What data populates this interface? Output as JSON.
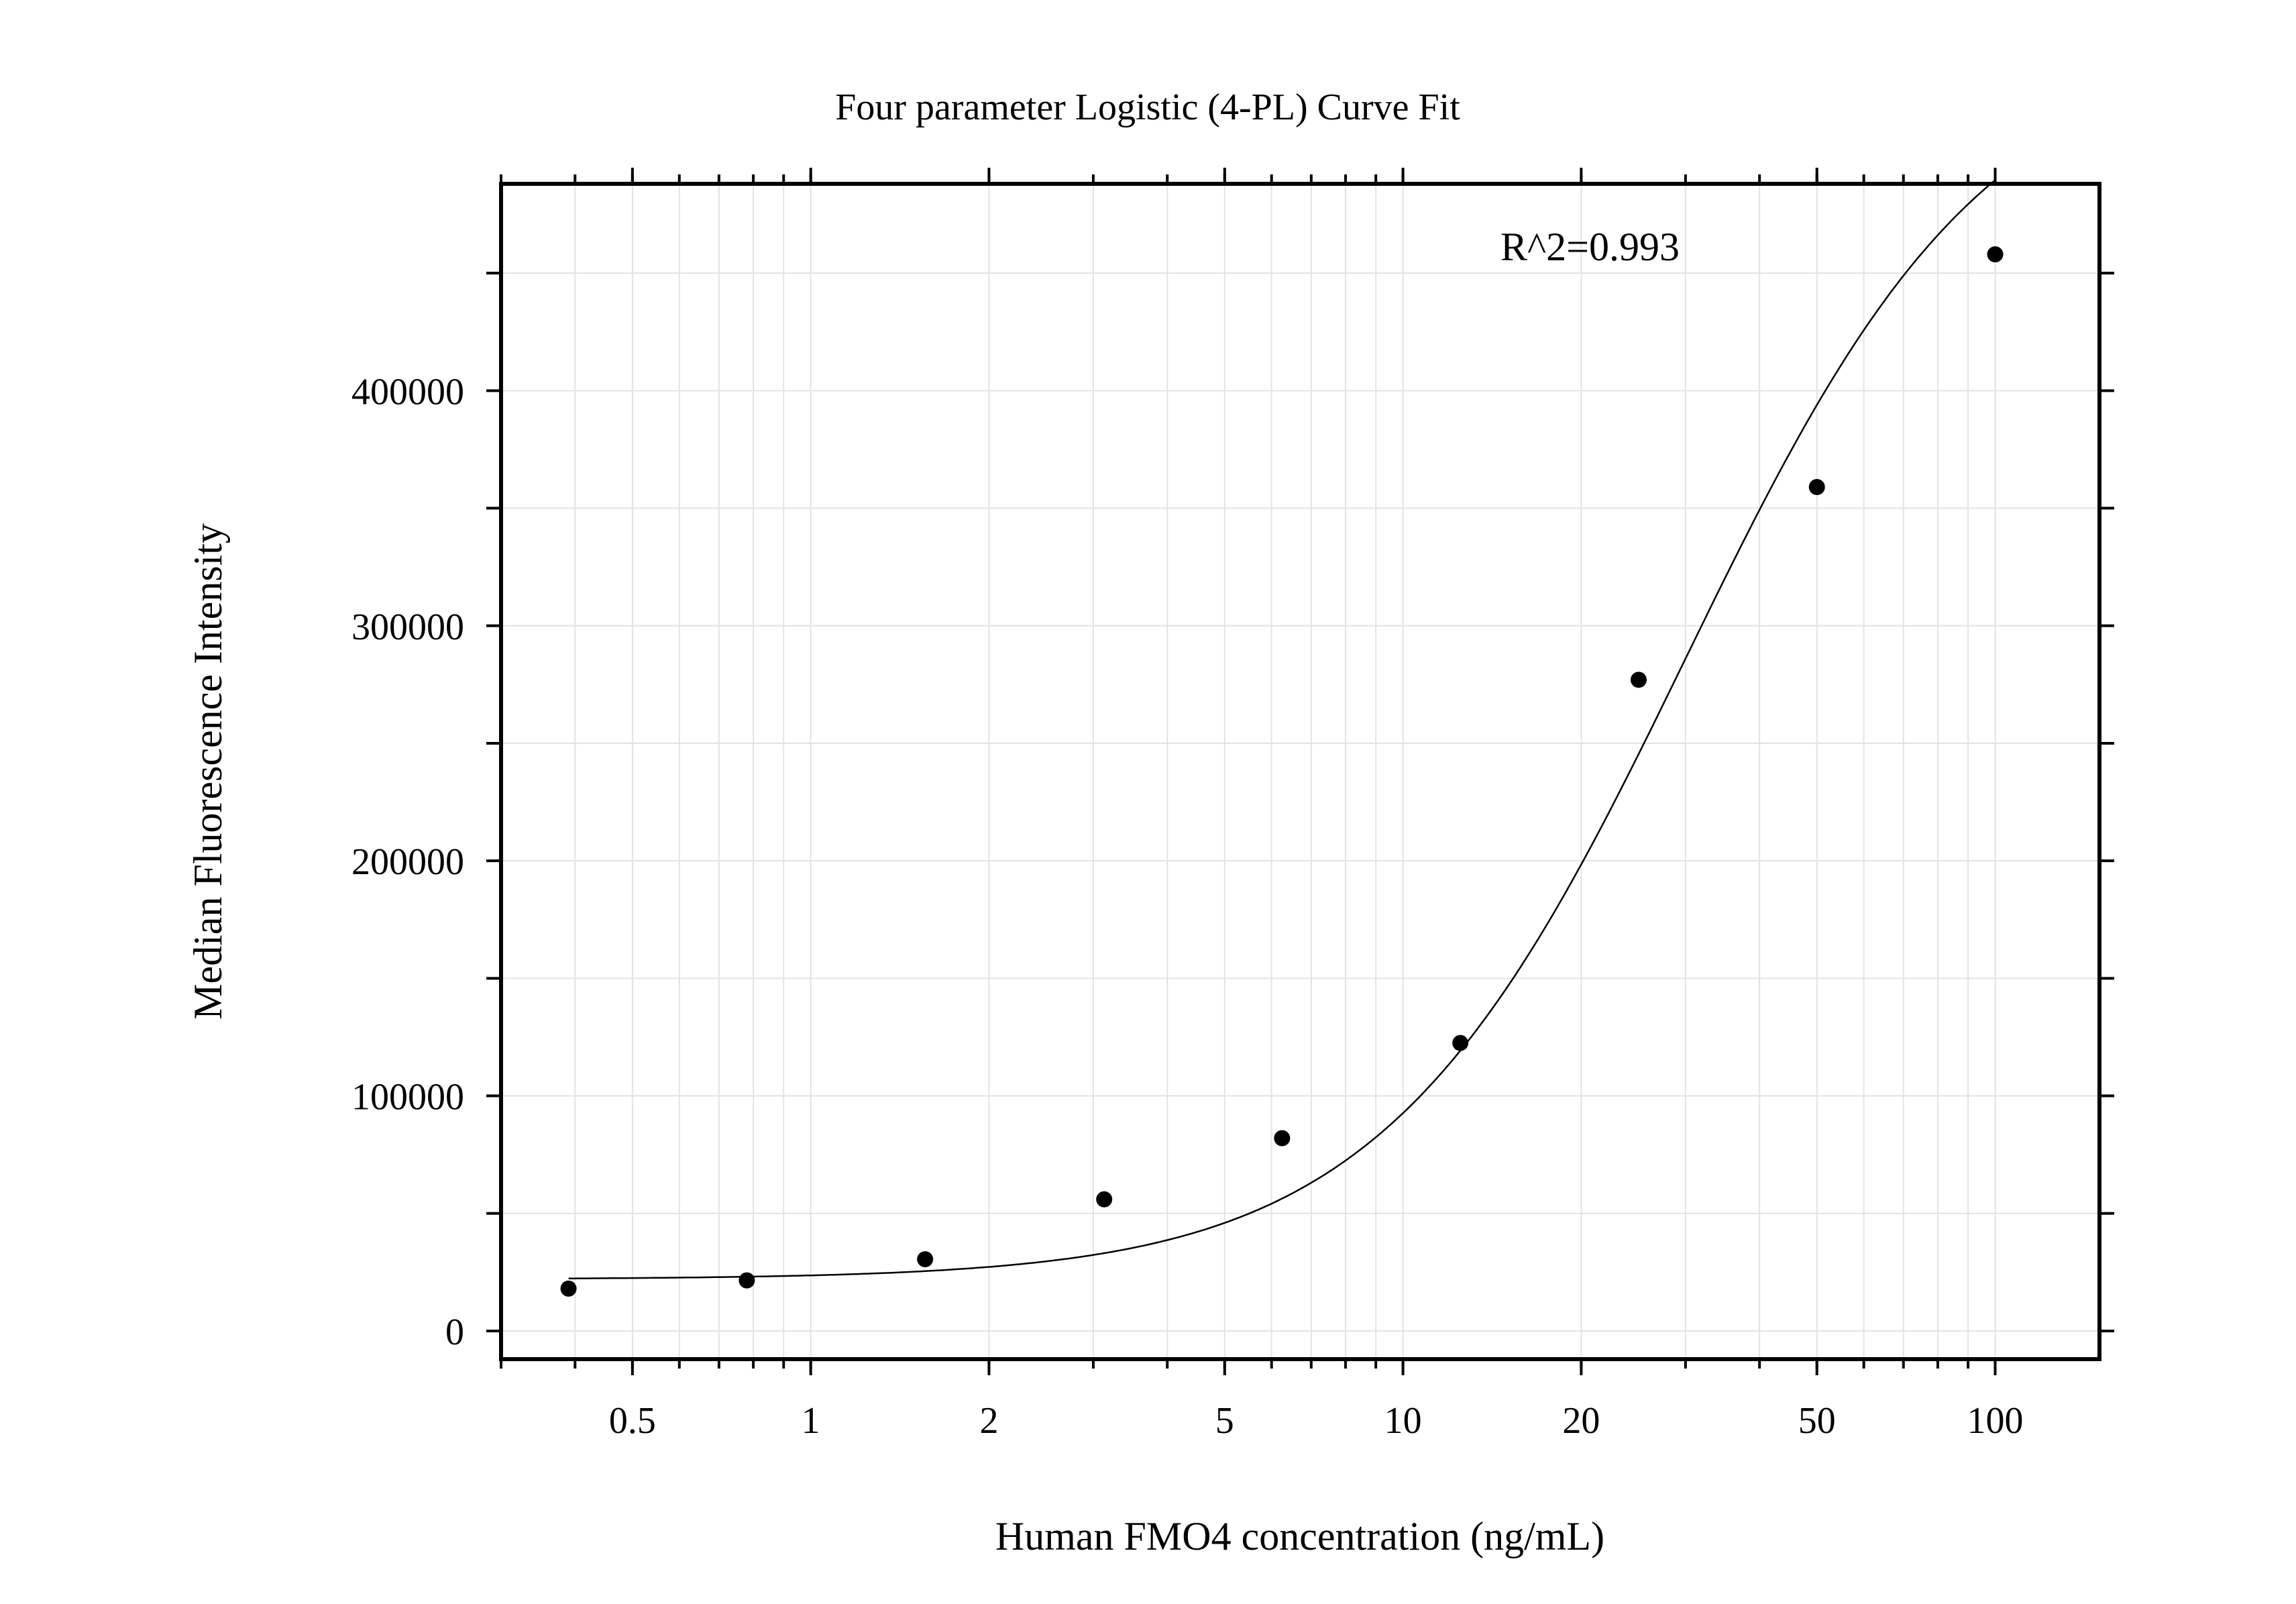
{
  "chart_data": {
    "type": "scatter",
    "title": "Four parameter Logistic (4-PL) Curve Fit",
    "xlabel": "Human FMO4 concentration (ng/mL)",
    "ylabel": "Median Fluorescence Intensity",
    "x_scale": "log",
    "xlim": [
      0.3,
      150
    ],
    "ylim": [
      -12000,
      488000
    ],
    "x_ticks": [
      0.5,
      1,
      2,
      5,
      10,
      20,
      50,
      100
    ],
    "x_tick_labels": [
      "0.5",
      "1",
      "2",
      "5",
      "10",
      "20",
      "50",
      "100"
    ],
    "y_ticks": [
      0,
      100000,
      200000,
      300000,
      400000
    ],
    "y_tick_labels": [
      "0",
      "100000",
      "200000",
      "300000",
      "400000"
    ],
    "grid": true,
    "annotation": "R^2=0.993",
    "series": [
      {
        "type": "scatter",
        "x": [
          0.39,
          0.78,
          1.56,
          3.13,
          6.25,
          12.5,
          25,
          50,
          100
        ],
        "y": [
          18000,
          21500,
          30500,
          56000,
          82000,
          122500,
          277000,
          359000,
          458000
        ]
      },
      {
        "type": "line",
        "fit": "4PL",
        "params": {
          "A": 22000,
          "D": 550000,
          "C": 30,
          "B": 1.7
        },
        "x_range": [
          0.39,
          100
        ]
      }
    ]
  }
}
